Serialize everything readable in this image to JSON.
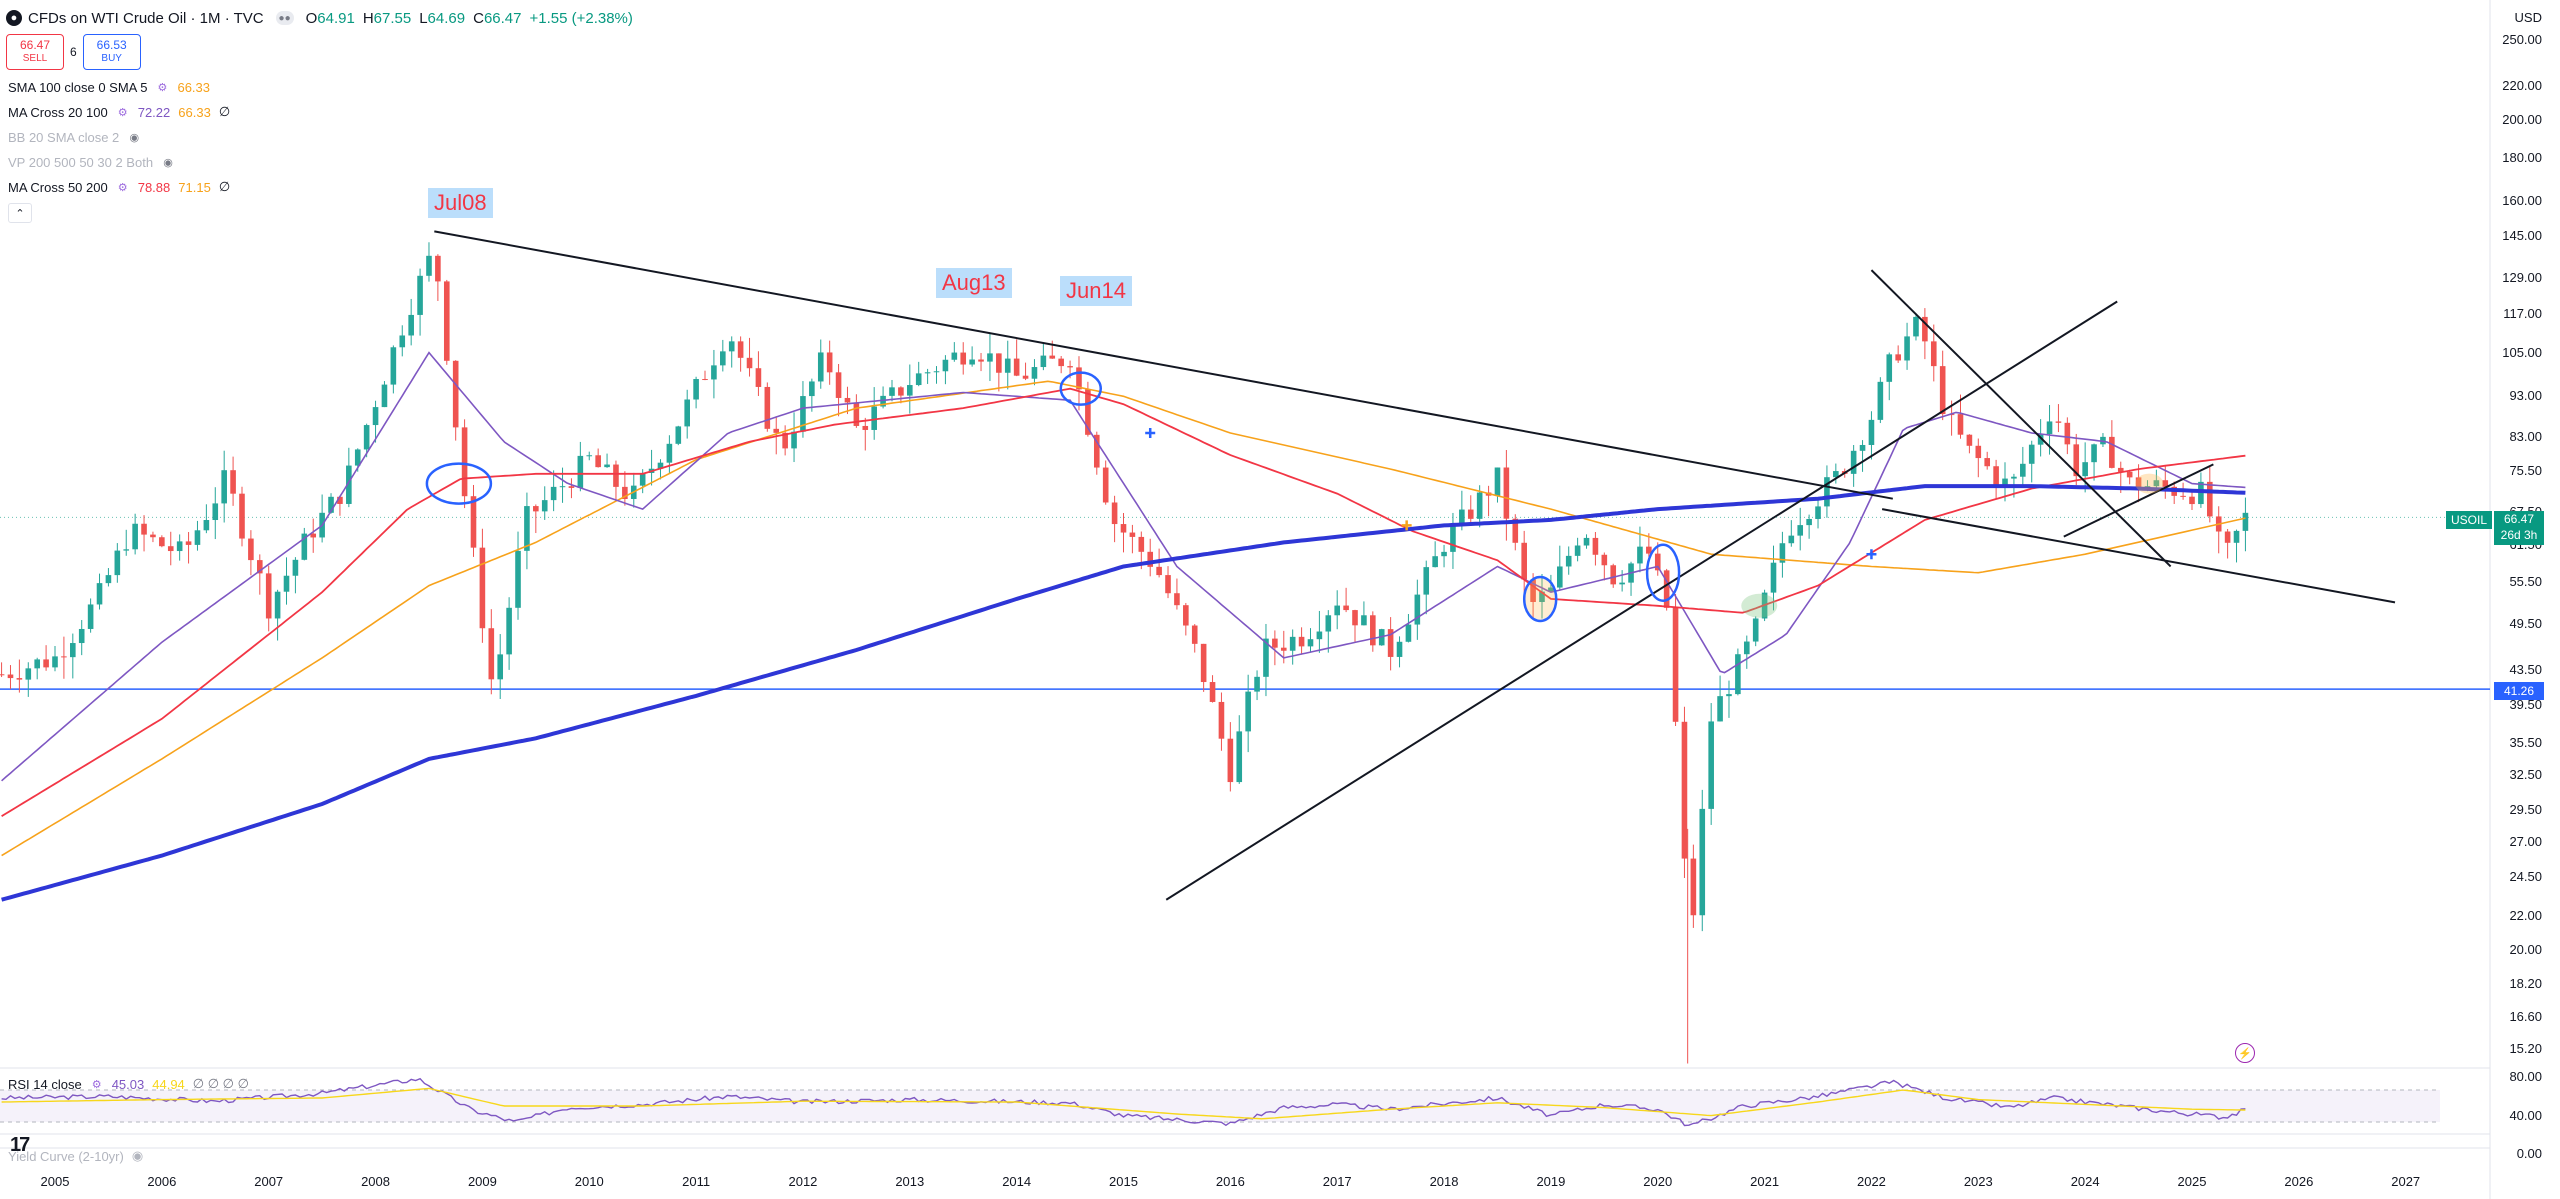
{
  "header": {
    "title": "CFDs on WTI Crude Oil · 1M · TVC",
    "o_label": "O",
    "o": "64.91",
    "h_label": "H",
    "h": "67.55",
    "l_label": "L",
    "l": "64.69",
    "c_label": "C",
    "c": "66.47",
    "change": "+1.55 (+2.38%)"
  },
  "trade": {
    "sell_price": "66.47",
    "sell_label": "SELL",
    "spread": "6",
    "buy_price": "66.53",
    "buy_label": "BUY"
  },
  "indicators": [
    {
      "name": "SMA 100 close 0 SMA 5",
      "v1": "66.33",
      "v1_color": "#f7a21b",
      "v2": "",
      "v2_color": "",
      "v3": "",
      "dim": false
    },
    {
      "name": "MA Cross 20 100",
      "v1": "72.22",
      "v1_color": "#7e57c2",
      "v2": "66.33",
      "v2_color": "#f7a21b",
      "v3": "∅",
      "dim": false
    },
    {
      "name": "BB 20 SMA close 2",
      "v1": "",
      "v1_color": "",
      "v2": "",
      "v2_color": "",
      "v3": "",
      "dim": true
    },
    {
      "name": "VP 200 500 50 30 2 Both",
      "v1": "",
      "v1_color": "",
      "v2": "",
      "v2_color": "",
      "v3": "",
      "dim": true
    },
    {
      "name": "MA Cross 50 200",
      "v1": "78.88",
      "v1_color": "#f23645",
      "v2": "71.15",
      "v2_color": "#f7a21b",
      "v3": "∅",
      "dim": false
    }
  ],
  "collapse_icon": "chevron-up-icon",
  "peak_labels": [
    {
      "text": "Jul08",
      "year": 2008.55
    },
    {
      "text": "Aug13",
      "year": 2013.6
    },
    {
      "text": "Jun14",
      "year": 2014.45
    }
  ],
  "currency": "USD",
  "price_badge": {
    "symbol": "USOIL",
    "price": "66.47",
    "countdown": "26d 3h",
    "color": "#089981"
  },
  "hline": {
    "price": 41.26,
    "label": "41.26",
    "color": "#2962ff"
  },
  "rsi": {
    "name": "RSI 14 close",
    "v1": "45.03",
    "v2": "44.94",
    "v_rest": "∅ ∅ ∅ ∅",
    "ticks": [
      "80.00",
      "40.00"
    ],
    "ylim": [
      20,
      90
    ],
    "bands": [
      30,
      70
    ]
  },
  "yield_curve": {
    "name": "Yield Curve (2-10yr)",
    "tick": "0.00"
  },
  "colors": {
    "up": "#26a69a",
    "down": "#ef5350",
    "sma": "#f7a21b",
    "ma20": "#7e57c2",
    "ma50": "#f23645",
    "ma200": "#2e36d6",
    "line": "#131722",
    "rsi": "#7e57c2",
    "rsi_ma": "#f7d71b"
  },
  "chart_data": [
    {
      "type": "candlestick",
      "title": "CFDs on WTI Crude Oil · 1M · TVC",
      "x_ticks": [
        2005,
        2006,
        2007,
        2008,
        2009,
        2010,
        2011,
        2012,
        2013,
        2014,
        2015,
        2016,
        2017,
        2018,
        2019,
        2020,
        2021,
        2022,
        2023,
        2024,
        2025,
        2026,
        2027
      ],
      "xlim": [
        2004.5,
        2028.2
      ],
      "y_scale": "log",
      "ylim": [
        14.5,
        265
      ],
      "y_ticks": [
        "250.00",
        "220.00",
        "200.00",
        "180.00",
        "160.00",
        "145.00",
        "129.00",
        "117.00",
        "105.00",
        "93.00",
        "83.00",
        "75.50",
        "67.50",
        "61.50",
        "55.50",
        "49.50",
        "43.50",
        "39.50",
        "35.50",
        "32.50",
        "29.50",
        "27.00",
        "24.50",
        "22.00",
        "20.00",
        "18.20",
        "16.60",
        "15.20"
      ],
      "closes_anchors": [
        [
          2004.5,
          43
        ],
        [
          2005.0,
          45
        ],
        [
          2005.4,
          53
        ],
        [
          2005.7,
          64
        ],
        [
          2006.2,
          60
        ],
        [
          2006.6,
          74
        ],
        [
          2007.0,
          52
        ],
        [
          2007.4,
          64
        ],
        [
          2007.7,
          72
        ],
        [
          2008.0,
          92
        ],
        [
          2008.3,
          118
        ],
        [
          2008.55,
          140
        ],
        [
          2008.85,
          68
        ],
        [
          2009.1,
          41
        ],
        [
          2009.4,
          66
        ],
        [
          2010.0,
          78
        ],
        [
          2010.4,
          70
        ],
        [
          2010.8,
          85
        ],
        [
          2011.3,
          112
        ],
        [
          2011.8,
          80
        ],
        [
          2012.2,
          104
        ],
        [
          2012.5,
          85
        ],
        [
          2013.0,
          97
        ],
        [
          2013.6,
          107
        ],
        [
          2014.0,
          98
        ],
        [
          2014.5,
          104
        ],
        [
          2014.9,
          66
        ],
        [
          2015.3,
          58
        ],
        [
          2015.7,
          45
        ],
        [
          2016.0,
          33
        ],
        [
          2016.3,
          46
        ],
        [
          2016.7,
          48
        ],
        [
          2017.0,
          53
        ],
        [
          2017.5,
          46
        ],
        [
          2018.0,
          62
        ],
        [
          2018.5,
          74
        ],
        [
          2018.8,
          52
        ],
        [
          2019.0,
          54
        ],
        [
          2019.3,
          65
        ],
        [
          2019.6,
          56
        ],
        [
          2019.9,
          61
        ],
        [
          2020.1,
          51
        ],
        [
          2020.3,
          20
        ],
        [
          2020.5,
          38
        ],
        [
          2020.9,
          48
        ],
        [
          2021.2,
          64
        ],
        [
          2021.7,
          75
        ],
        [
          2022.0,
          88
        ],
        [
          2022.2,
          104
        ],
        [
          2022.45,
          114
        ],
        [
          2022.7,
          88
        ],
        [
          2022.9,
          80
        ],
        [
          2023.3,
          72
        ],
        [
          2023.7,
          91
        ],
        [
          2023.9,
          76
        ],
        [
          2024.2,
          81
        ],
        [
          2024.4,
          73
        ],
        [
          2024.8,
          72
        ],
        [
          2025.1,
          71
        ],
        [
          2025.3,
          59
        ],
        [
          2025.5,
          66.47
        ]
      ],
      "series": [
        {
          "name": "SMA 100 close 0 SMA 5",
          "anchors": [
            [
              2004.5,
              26
            ],
            [
              2006,
              34
            ],
            [
              2007.5,
              45
            ],
            [
              2008.5,
              55
            ],
            [
              2009.5,
              62
            ],
            [
              2011,
              78
            ],
            [
              2012.5,
              90
            ],
            [
              2014.3,
              97
            ],
            [
              2015,
              93
            ],
            [
              2016,
              84
            ],
            [
              2017.5,
              76
            ],
            [
              2019,
              68
            ],
            [
              2020.5,
              60
            ],
            [
              2022,
              58
            ],
            [
              2023,
              57
            ],
            [
              2024,
              60
            ],
            [
              2025.5,
              66.33
            ]
          ]
        },
        {
          "name": "MA Cross 20 100 (fast)",
          "anchors": [
            [
              2004.5,
              32
            ],
            [
              2006,
              47
            ],
            [
              2007.5,
              65
            ],
            [
              2008.5,
              105
            ],
            [
              2009.2,
              82
            ],
            [
              2009.8,
              73
            ],
            [
              2010.5,
              68
            ],
            [
              2011.3,
              84
            ],
            [
              2012,
              90
            ],
            [
              2013.5,
              94
            ],
            [
              2014.5,
              92
            ],
            [
              2015.5,
              58
            ],
            [
              2016.5,
              45
            ],
            [
              2017.5,
              48
            ],
            [
              2018.5,
              58
            ],
            [
              2019,
              54
            ],
            [
              2020,
              58
            ],
            [
              2020.6,
              43
            ],
            [
              2021.2,
              48
            ],
            [
              2021.8,
              62
            ],
            [
              2022.3,
              85
            ],
            [
              2022.8,
              89
            ],
            [
              2023.5,
              84
            ],
            [
              2024.2,
              82
            ],
            [
              2025,
              73
            ],
            [
              2025.5,
              72.22
            ]
          ]
        },
        {
          "name": "MA Cross 50 200 (fast)",
          "anchors": [
            [
              2004.5,
              29
            ],
            [
              2006,
              38
            ],
            [
              2007.5,
              54
            ],
            [
              2008.3,
              68
            ],
            [
              2008.8,
              74
            ],
            [
              2009.5,
              75
            ],
            [
              2010.5,
              75
            ],
            [
              2011.5,
              82
            ],
            [
              2012.3,
              86
            ],
            [
              2013.5,
              90
            ],
            [
              2014.5,
              95
            ],
            [
              2015,
              91
            ],
            [
              2016,
              79
            ],
            [
              2017,
              71
            ],
            [
              2017.7,
              64
            ],
            [
              2018.5,
              59
            ],
            [
              2019,
              53
            ],
            [
              2020,
              52
            ],
            [
              2020.8,
              51
            ],
            [
              2021.5,
              55
            ],
            [
              2022.5,
              66
            ],
            [
              2023.5,
              72
            ],
            [
              2024.5,
              76
            ],
            [
              2025.5,
              78.88
            ]
          ]
        },
        {
          "name": "MA Cross 50 200 (slow)",
          "anchors": [
            [
              2004.5,
              23
            ],
            [
              2006,
              26
            ],
            [
              2007.5,
              30
            ],
            [
              2008.5,
              34
            ],
            [
              2009.5,
              36
            ],
            [
              2011,
              40.5
            ],
            [
              2012.5,
              46
            ],
            [
              2014,
              53
            ],
            [
              2015,
              58
            ],
            [
              2016.5,
              62
            ],
            [
              2018,
              65
            ],
            [
              2019,
              66
            ],
            [
              2020,
              68
            ],
            [
              2021.5,
              70
            ],
            [
              2022.5,
              72.5
            ],
            [
              2023.5,
              72.5
            ],
            [
              2024.5,
              72
            ],
            [
              2025.5,
              71.15
            ]
          ]
        }
      ],
      "trendlines": [
        {
          "from": [
            2008.55,
            147
          ],
          "to": [
            2022.2,
            70
          ]
        },
        {
          "from": [
            2015.4,
            23
          ],
          "to": [
            2024.3,
            121
          ]
        },
        {
          "from": [
            2022.0,
            132
          ],
          "to": [
            2024.8,
            58
          ]
        },
        {
          "from": [
            2022.1,
            68
          ],
          "to": [
            2026.9,
            52.5
          ]
        },
        {
          "from": [
            2023.8,
            63
          ],
          "to": [
            2025.2,
            77
          ]
        }
      ]
    },
    {
      "type": "line",
      "title": "RSI 14 close",
      "ylim": [
        20,
        90
      ],
      "series": [
        {
          "name": "RSI 14 close",
          "anchors": [
            [
              2004.5,
              60
            ],
            [
              2005.5,
              62
            ],
            [
              2006.5,
              56
            ],
            [
              2007.5,
              66
            ],
            [
              2008.4,
              84
            ],
            [
              2008.9,
              45
            ],
            [
              2009.3,
              30
            ],
            [
              2009.8,
              48
            ],
            [
              2010.5,
              52
            ],
            [
              2011.3,
              62
            ],
            [
              2012,
              55
            ],
            [
              2013,
              58
            ],
            [
              2014.5,
              54
            ],
            [
              2015,
              38
            ],
            [
              2015.6,
              32
            ],
            [
              2016,
              28
            ],
            [
              2016.5,
              48
            ],
            [
              2017,
              52
            ],
            [
              2017.5,
              46
            ],
            [
              2018.5,
              60
            ],
            [
              2019,
              38
            ],
            [
              2019.5,
              52
            ],
            [
              2020,
              46
            ],
            [
              2020.3,
              25
            ],
            [
              2020.8,
              50
            ],
            [
              2021.5,
              62
            ],
            [
              2022.2,
              80
            ],
            [
              2022.7,
              60
            ],
            [
              2023.3,
              48
            ],
            [
              2023.7,
              60
            ],
            [
              2024.2,
              52
            ],
            [
              2024.7,
              44
            ],
            [
              2025.3,
              36
            ],
            [
              2025.5,
              45.03
            ]
          ]
        },
        {
          "name": "RSI MA",
          "anchors": [
            [
              2004.5,
              55
            ],
            [
              2006,
              58
            ],
            [
              2007.5,
              60
            ],
            [
              2008.5,
              72
            ],
            [
              2009.2,
              50
            ],
            [
              2010.5,
              50
            ],
            [
              2012,
              56
            ],
            [
              2014,
              55
            ],
            [
              2015.5,
              40
            ],
            [
              2016.3,
              34
            ],
            [
              2017.5,
              46
            ],
            [
              2018.5,
              54
            ],
            [
              2019.5,
              48
            ],
            [
              2020.5,
              38
            ],
            [
              2021.5,
              55
            ],
            [
              2022.3,
              70
            ],
            [
              2023,
              58
            ],
            [
              2024,
              52
            ],
            [
              2025,
              46
            ],
            [
              2025.5,
              44.94
            ]
          ]
        }
      ]
    }
  ]
}
